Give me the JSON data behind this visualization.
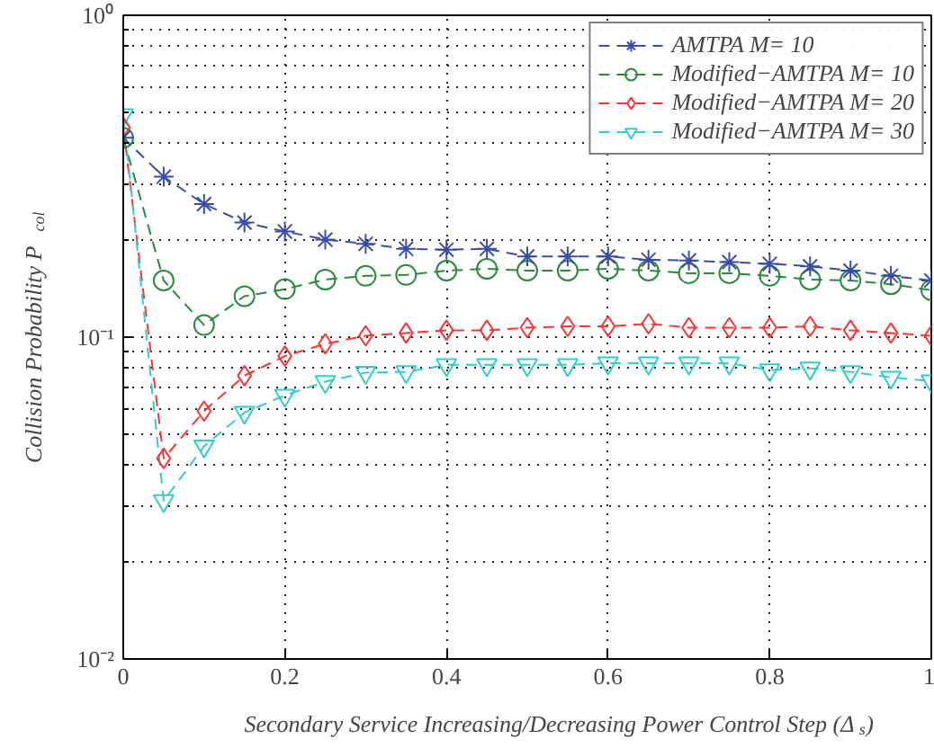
{
  "chart_data": {
    "type": "line",
    "xlabel": "Secondary Service Increasing/Decreasing Power Control Step (Δ$_{s}$)",
    "ylabel": "Collision Probability P$_{col}$",
    "x": [
      0,
      0.05,
      0.1,
      0.15,
      0.2,
      0.25,
      0.3,
      0.35,
      0.4,
      0.45,
      0.5,
      0.55,
      0.6,
      0.65,
      0.7,
      0.75,
      0.8,
      0.85,
      0.9,
      0.95,
      1
    ],
    "series": [
      {
        "name": "AMTPA M= 10",
        "color": "#3a4ca8",
        "marker": "cross",
        "values": [
          0.416,
          0.315,
          0.259,
          0.227,
          0.213,
          0.201,
          0.195,
          0.188,
          0.187,
          0.188,
          0.178,
          0.178,
          0.178,
          0.174,
          0.173,
          0.171,
          0.169,
          0.166,
          0.161,
          0.155,
          0.15
        ]
      },
      {
        "name": "Modified−AMTPA M= 10",
        "color": "#2a8a3a",
        "marker": "circle",
        "values": [
          0.416,
          0.15,
          0.109,
          0.134,
          0.141,
          0.151,
          0.155,
          0.156,
          0.161,
          0.163,
          0.161,
          0.161,
          0.163,
          0.161,
          0.158,
          0.158,
          0.155,
          0.151,
          0.15,
          0.146,
          0.14
        ]
      },
      {
        "name": "Modified−AMTPA M= 20",
        "color": "#ff3333",
        "marker": "diamond",
        "values": [
          0.448,
          0.042,
          0.0589,
          0.0759,
          0.0873,
          0.0953,
          0.101,
          0.103,
          0.105,
          0.105,
          0.107,
          0.108,
          0.108,
          0.11,
          0.107,
          0.107,
          0.107,
          0.108,
          0.105,
          0.103,
          0.101
        ]
      },
      {
        "name": "Modified−AMTPA M= 30",
        "color": "#33cccc",
        "marker": "triangle",
        "values": [
          0.49,
          0.031,
          0.0458,
          0.0583,
          0.0659,
          0.0727,
          0.0776,
          0.078,
          0.082,
          0.082,
          0.082,
          0.082,
          0.083,
          0.083,
          0.083,
          0.083,
          0.079,
          0.08,
          0.078,
          0.075,
          0.073
        ]
      }
    ],
    "xlim": [
      0,
      1
    ],
    "ylim": [
      0.01,
      1
    ],
    "xticks": [
      0,
      0.2,
      0.4,
      0.6,
      0.8,
      1
    ],
    "yticks": [
      {
        "value": 0.01,
        "label": "10⁻²"
      },
      {
        "value": 0.1,
        "label": "10⁻¹"
      },
      {
        "value": 1,
        "label": "10⁰"
      }
    ],
    "log": true,
    "grid": true,
    "legend": "top right",
    "line_style": "dashed"
  }
}
